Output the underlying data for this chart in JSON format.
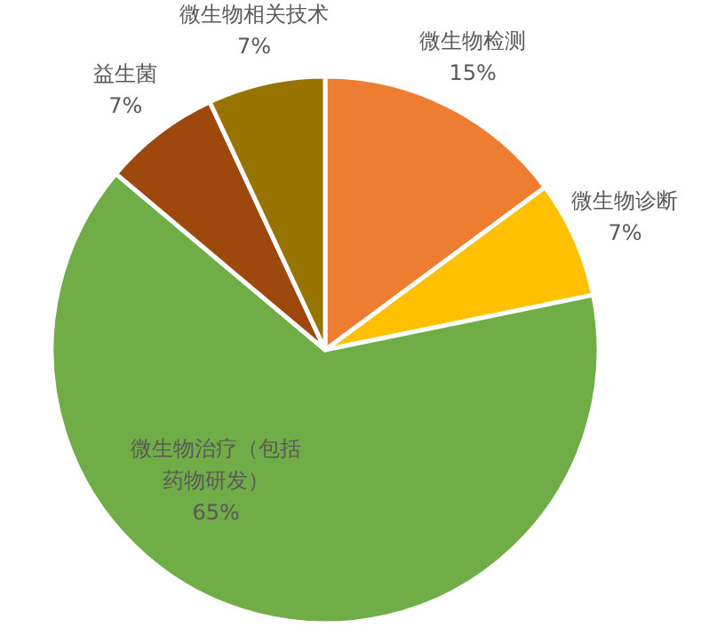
{
  "chart_data": {
    "type": "pie",
    "categories": [
      "微生物检测",
      "微生物诊断",
      "微生物治疗（包括药物研发）",
      "益生菌",
      "微生物相关技术"
    ],
    "values": [
      15,
      7,
      65,
      7,
      7
    ],
    "colors": [
      "#ed7d31",
      "#ffc000",
      "#70ad47",
      "#9e480e",
      "#997300"
    ],
    "value_labels": [
      "15%",
      "7%",
      "65%",
      "7%",
      "7%"
    ]
  }
}
